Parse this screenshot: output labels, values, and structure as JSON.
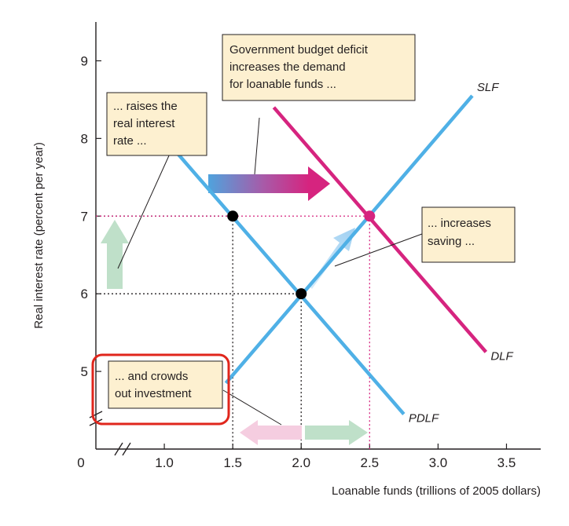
{
  "chart_data": {
    "type": "line",
    "title": "",
    "xlabel": "Loanable funds (trillions of 2005 dollars)",
    "ylabel": "Real interest rate (percent per year)",
    "x_origin_label": "0",
    "xlim": [
      0.5,
      3.75
    ],
    "ylim": [
      4.0,
      9.5
    ],
    "x_ticks": [
      "1.0",
      "1.5",
      "2.0",
      "2.5",
      "3.0",
      "3.5"
    ],
    "y_ticks": [
      "5",
      "6",
      "7",
      "8",
      "9"
    ],
    "highlight_color": "#d6247f",
    "series": [
      {
        "name": "SLF",
        "color": "#4fb0e6",
        "x": [
          1.45,
          3.25
        ],
        "y": [
          4.85,
          8.55
        ]
      },
      {
        "name": "DLF",
        "color": "#d6247f",
        "x": [
          1.8,
          3.35
        ],
        "y": [
          8.4,
          5.25
        ]
      },
      {
        "name": "PDLF",
        "color": "#4fb0e6",
        "x": [
          1.1,
          2.75
        ],
        "y": [
          7.8,
          4.45
        ]
      }
    ],
    "points": [
      {
        "x": 2.0,
        "y": 6.0,
        "color": "#000000"
      },
      {
        "x": 1.5,
        "y": 7.0,
        "color": "#000000"
      },
      {
        "x": 2.5,
        "y": 7.0,
        "color": "#d6247f"
      }
    ],
    "highlight_x_tick": "2.5",
    "highlight_y_tick": "7",
    "annotations": [
      {
        "lines": [
          "Government budget deficit",
          "increases the demand",
          "for loanable funds ..."
        ]
      },
      {
        "lines": [
          "... raises the",
          "real interest",
          "rate ..."
        ]
      },
      {
        "lines": [
          "... increases",
          "saving ..."
        ]
      },
      {
        "lines": [
          "... and crowds",
          "out investment"
        ]
      }
    ]
  }
}
